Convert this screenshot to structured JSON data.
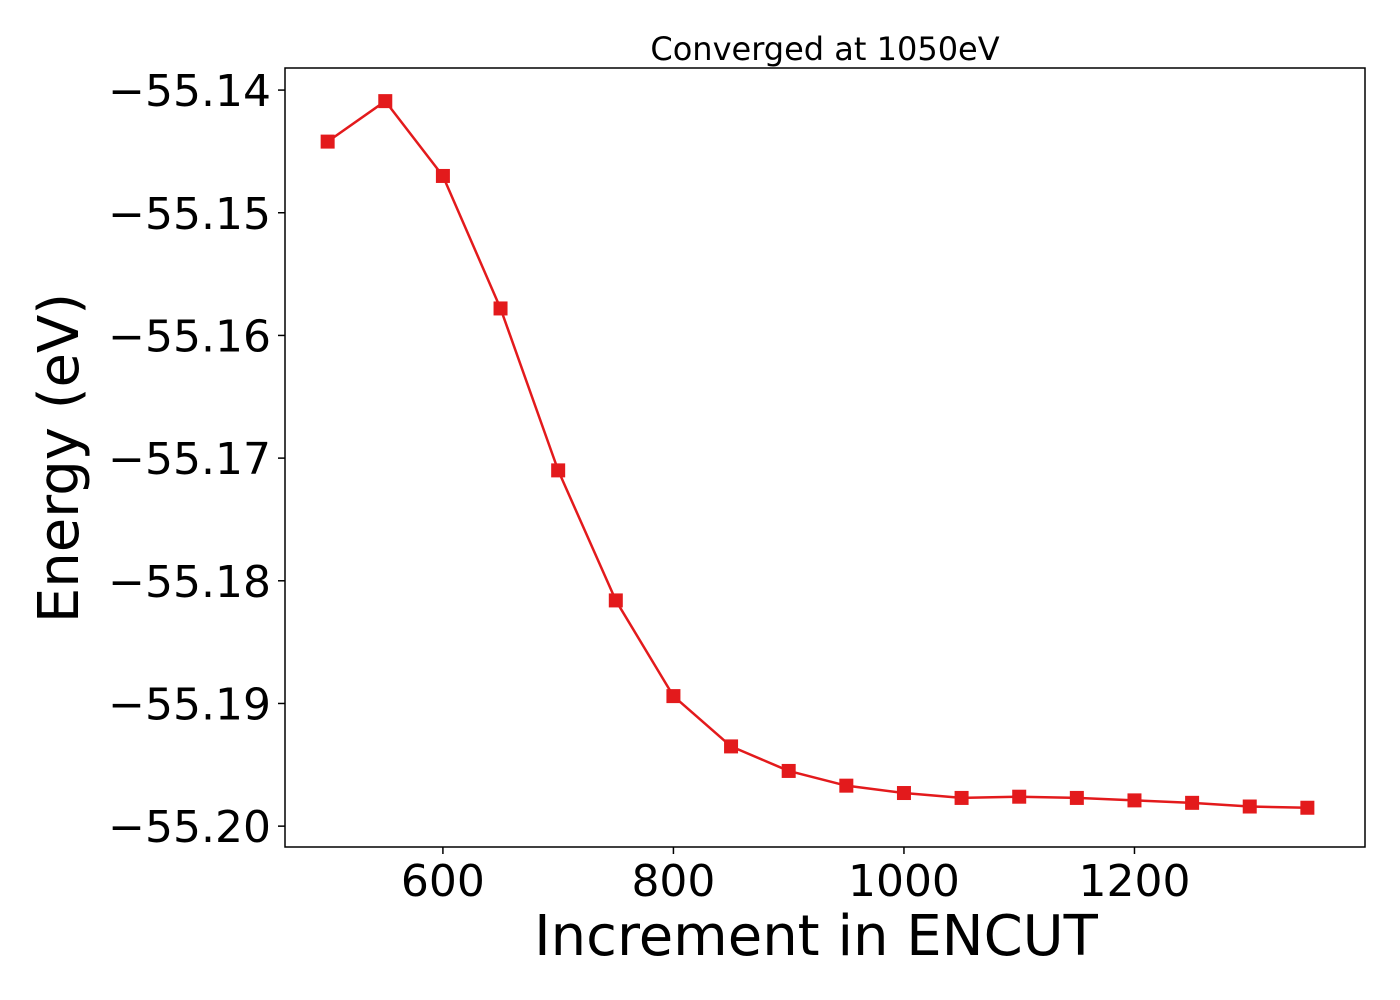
{
  "chart_data": {
    "type": "line",
    "title": "Converged at 1050eV",
    "xlabel": "Increment in ENCUT",
    "ylabel": "Energy (eV)",
    "xlim": [
      463,
      1400
    ],
    "ylim": [
      -55.2017,
      -55.1382
    ],
    "x_ticks": [
      {
        "value": 600,
        "label": "600"
      },
      {
        "value": 800,
        "label": "800"
      },
      {
        "value": 1000,
        "label": "1000"
      },
      {
        "value": 1200,
        "label": "1200"
      }
    ],
    "y_ticks": [
      {
        "value": -55.14,
        "label": "−55.14"
      },
      {
        "value": -55.15,
        "label": "−55.15"
      },
      {
        "value": -55.16,
        "label": "−55.16"
      },
      {
        "value": -55.17,
        "label": "−55.17"
      },
      {
        "value": -55.18,
        "label": "−55.18"
      },
      {
        "value": -55.19,
        "label": "−55.19"
      },
      {
        "value": -55.2,
        "label": "−55.20"
      }
    ],
    "grid": false,
    "series": [
      {
        "color": "#e31a1c",
        "marker": "square",
        "x": [
          500,
          550,
          600,
          650,
          700,
          750,
          800,
          850,
          900,
          950,
          1000,
          1050,
          1100,
          1150,
          1200,
          1250,
          1300,
          1350
        ],
        "y": [
          -55.1442,
          -55.1409,
          -55.147,
          -55.1578,
          -55.171,
          -55.1816,
          -55.1894,
          -55.1935,
          -55.1955,
          -55.1967,
          -55.1973,
          -55.1977,
          -55.1976,
          -55.1977,
          -55.1979,
          -55.1981,
          -55.1984,
          -55.1985
        ]
      }
    ]
  }
}
